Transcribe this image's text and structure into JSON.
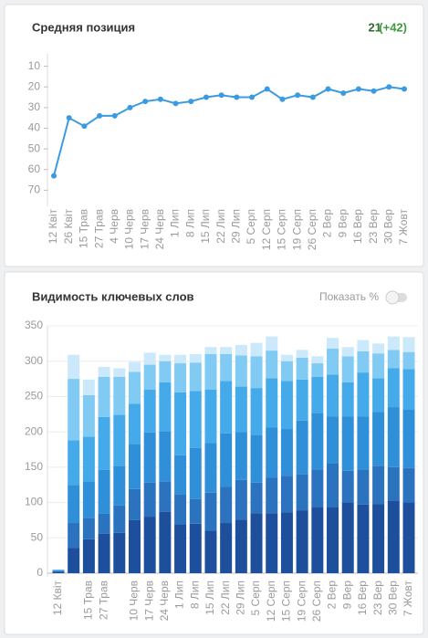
{
  "chart_data": [
    {
      "type": "line",
      "title": "Средняя позиция",
      "summary_value": "21",
      "summary_change": "(+42)",
      "categories": [
        "12 Квіт",
        "26 Квіт",
        "15 Трав",
        "27 Трав",
        "4 Черв",
        "10 Черв",
        "17 Черв",
        "24 Черв",
        "1 Лип",
        "8 Лип",
        "15 Лип",
        "22 Лип",
        "29 Лип",
        "5 Серп",
        "12 Серп",
        "15 Серп",
        "19 Серп",
        "26 Серп",
        "2 Вер",
        "9 Вер",
        "16 Вер",
        "23 Вер",
        "30 Вер",
        "7 Жовт"
      ],
      "series": [
        {
          "color": "#3b9be0",
          "values": [
            63,
            35,
            39,
            34,
            34,
            30,
            27,
            26,
            28,
            27,
            25,
            24,
            25,
            25,
            21,
            26,
            24,
            25,
            21,
            23,
            21,
            22,
            20,
            21
          ]
        }
      ],
      "ylim": [
        4,
        76
      ],
      "y_inverted": true,
      "yticks": [
        10,
        20,
        30,
        40,
        50,
        60,
        70
      ]
    },
    {
      "type": "stacked_bar",
      "title": "Видимость ключевых слов",
      "toggle_label": "Показать %",
      "categories": [
        "12 Квіт",
        null,
        "15 Трав",
        "27 Трав",
        null,
        "10 Черв",
        "17 Черв",
        "24 Черв",
        "1 Лип",
        "8 Лип",
        "15 Лип",
        "22 Лип",
        "29 Лип",
        "5 Серп",
        "12 Серп",
        "15 Серп",
        "19 Серп",
        "26 Серп",
        "2 Вер",
        "9 Вер",
        "16 Вер",
        "23 Вер",
        "30 Вер",
        "7 Жовт"
      ],
      "series": [
        {
          "color": "#1d4f9c",
          "values": [
            2,
            36,
            48,
            56,
            57,
            75,
            80,
            87,
            69,
            70,
            60,
            71,
            76,
            85,
            85,
            86,
            89,
            94,
            94,
            100,
            97,
            98,
            103,
            100
          ]
        },
        {
          "color": "#2b73bf",
          "values": [
            1,
            35,
            30,
            28,
            39,
            44,
            48,
            43,
            43,
            35,
            54,
            51,
            56,
            43,
            50,
            52,
            51,
            53,
            61,
            45,
            50,
            54,
            47,
            49
          ]
        },
        {
          "color": "#2f90d9",
          "values": [
            1,
            54,
            52,
            62,
            56,
            64,
            71,
            71,
            55,
            72,
            70,
            76,
            68,
            68,
            71,
            66,
            76,
            80,
            67,
            77,
            75,
            76,
            85,
            83
          ]
        },
        {
          "color": "#45aaea",
          "values": [
            1,
            63,
            63,
            75,
            72,
            57,
            61,
            69,
            89,
            81,
            76,
            74,
            64,
            66,
            70,
            68,
            58,
            51,
            59,
            48,
            62,
            48,
            55,
            57
          ]
        },
        {
          "color": "#80caf3",
          "values": [
            0,
            87,
            59,
            57,
            54,
            45,
            35,
            30,
            41,
            40,
            50,
            38,
            44,
            45,
            39,
            28,
            31,
            19,
            37,
            37,
            30,
            35,
            26,
            24
          ]
        },
        {
          "color": "#cbe9fa",
          "values": [
            0,
            34,
            22,
            14,
            12,
            14,
            17,
            9,
            12,
            12,
            10,
            10,
            15,
            19,
            20,
            9,
            11,
            10,
            15,
            13,
            16,
            14,
            19,
            21
          ]
        }
      ],
      "ylim": [
        0,
        350
      ],
      "yticks": [
        0,
        50,
        100,
        150,
        200,
        250,
        300,
        350
      ],
      "grid": true
    }
  ]
}
